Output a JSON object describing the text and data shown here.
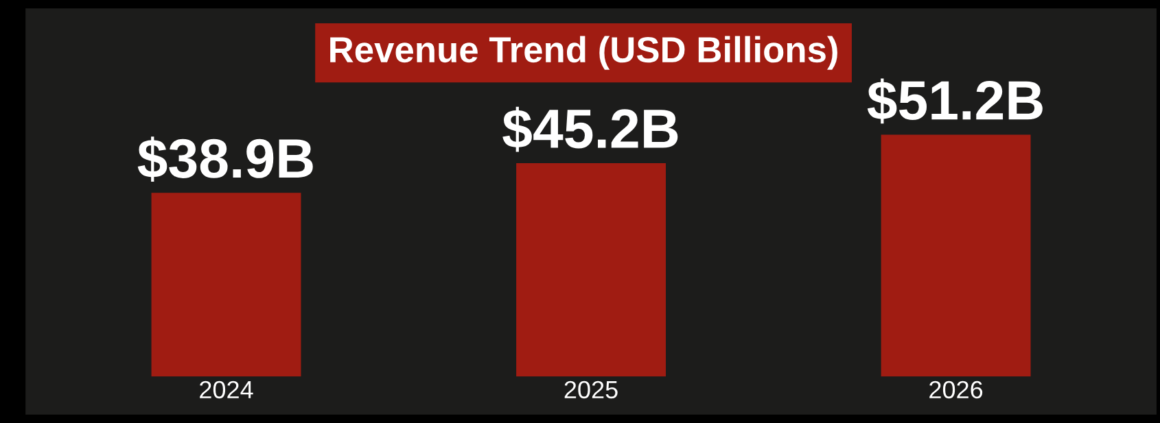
{
  "chart_data": {
    "type": "bar",
    "title": "Revenue Trend (USD Billions)",
    "categories": [
      "2024",
      "2025",
      "2026"
    ],
    "values": [
      38.9,
      45.2,
      51.2
    ],
    "value_labels": [
      "$38.9B",
      "$45.2B",
      "$51.2B"
    ],
    "color": "#a01c12",
    "grid": false,
    "legend": false,
    "tick_labels": "x"
  }
}
